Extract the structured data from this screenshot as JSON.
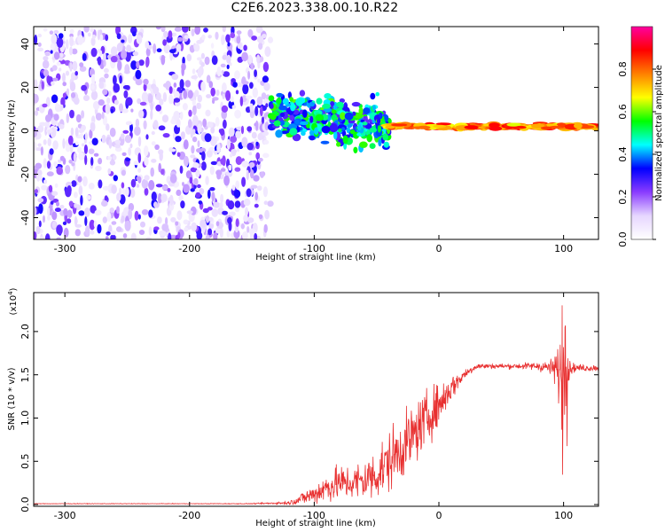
{
  "title": "C2E6.2023.338.00.10.R22",
  "colors": {
    "snr_line": "#e83030",
    "axis": "#000000"
  },
  "chart_data": [
    {
      "type": "heatmap",
      "xlabel": "Height of straight line (km)",
      "ylabel": "Frequency (Hz)",
      "xlim": [
        -325,
        128
      ],
      "ylim": [
        -50,
        48
      ],
      "x_ticks": [
        -300,
        -200,
        -100,
        0,
        100
      ],
      "x_tick_labels": [
        "-300",
        "-200",
        "-100",
        "0",
        "100"
      ],
      "y_ticks": [
        -40,
        -20,
        0,
        20,
        40
      ],
      "y_tick_labels": [
        "-40",
        "-20",
        "0",
        "20",
        "40"
      ],
      "colorbar": {
        "label": "Normalized spectral amplitude",
        "range": [
          0.0,
          1.0
        ],
        "ticks": [
          0.0,
          0.2,
          0.4,
          0.6,
          0.8
        ],
        "tick_labels": [
          "0.0",
          "0.2",
          "0.4",
          "0.6",
          "0.8"
        ],
        "colormap": [
          "#ffffff",
          "#e6d6ff",
          "#8a3cff",
          "#0000ff",
          "#00ffff",
          "#00ff00",
          "#ffff00",
          "#ff8000",
          "#ff0000",
          "#ff00a0"
        ]
      },
      "regions": [
        {
          "description": "broadband noise",
          "x_range": [
            -325,
            -135
          ],
          "freq_range": [
            -50,
            48
          ],
          "amplitude": 0.1
        },
        {
          "description": "broadened signal",
          "x_range": [
            -135,
            -40
          ],
          "freq_center": 8,
          "freq_spread": 8,
          "amplitude": 0.4
        },
        {
          "description": "narrow carrier",
          "x_range": [
            -40,
            128
          ],
          "freq_center": 2,
          "freq_spread": 1,
          "amplitude": 0.9
        }
      ]
    },
    {
      "type": "line",
      "xlabel": "Height of straight line (km)",
      "ylabel": "SNR (10 * v/v)",
      "y_multiplier": "(x10",
      "y_multiplier_exp": "4",
      "y_multiplier_close": ")",
      "xlim": [
        -325,
        128
      ],
      "ylim": [
        -0.02,
        2.45
      ],
      "x_ticks": [
        -300,
        -200,
        -100,
        0,
        100
      ],
      "x_tick_labels": [
        "-300",
        "-200",
        "-100",
        "0",
        "100"
      ],
      "y_ticks": [
        0.0,
        0.5,
        1.0,
        1.5,
        2.0
      ],
      "y_tick_labels": [
        "0.0",
        "0.5",
        "1.0",
        "1.5",
        "2.0"
      ],
      "series": [
        {
          "x": [
            -325,
            -250,
            -200,
            -150,
            -120,
            -100,
            -90,
            -80,
            -70,
            -60,
            -50,
            -40,
            -30,
            -20,
            -10,
            0,
            10,
            20,
            30,
            40,
            60,
            80,
            90,
            95,
            100,
            105,
            110,
            128
          ],
          "y": [
            0.01,
            0.01,
            0.01,
            0.01,
            0.02,
            0.12,
            0.2,
            0.25,
            0.25,
            0.28,
            0.35,
            0.5,
            0.65,
            0.8,
            1.0,
            1.15,
            1.35,
            1.5,
            1.6,
            1.6,
            1.6,
            1.6,
            1.58,
            1.55,
            1.5,
            1.58,
            1.58,
            1.58
          ],
          "noise": [
            0.003,
            0.003,
            0.003,
            0.004,
            0.02,
            0.12,
            0.18,
            0.2,
            0.2,
            0.25,
            0.3,
            0.35,
            0.35,
            0.35,
            0.3,
            0.25,
            0.15,
            0.06,
            0.04,
            0.03,
            0.03,
            0.05,
            0.1,
            0.25,
            0.6,
            0.08,
            0.04,
            0.04
          ]
        }
      ]
    }
  ]
}
